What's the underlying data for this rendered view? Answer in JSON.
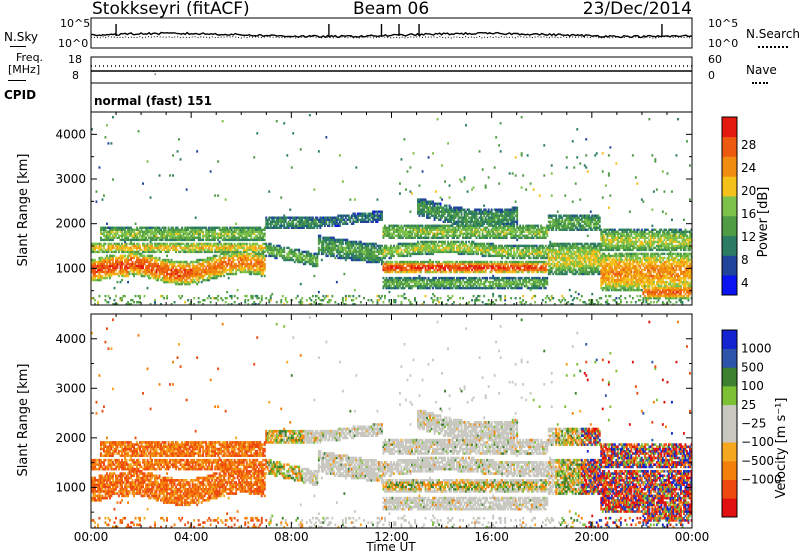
{
  "header": {
    "station": "Stokkseyri (fitACF)",
    "beam": "Beam 06",
    "date": "23/Dec/2014"
  },
  "strip": {
    "nsky_label": "N.Sky",
    "nsearch_label": "N.Search",
    "noise_ticks": [
      "10^5",
      "10^0"
    ],
    "freq_label": "Freq.",
    "freq_unit": "[MHz]",
    "freq_ticks": [
      "18",
      "8"
    ],
    "nave_label": "Nave",
    "nave_ticks": [
      "60",
      "0"
    ],
    "cpid_label": "CPID",
    "cpid_value": "normal (fast) 151"
  },
  "chart_data": [
    {
      "type": "heatmap",
      "title": "",
      "xlabel": "Time UT",
      "ylabel": "Slant Range [km]",
      "x_ticks": [
        "00:00",
        "04:00",
        "08:00",
        "12:00",
        "16:00",
        "20:00",
        "00:00"
      ],
      "x_range": [
        "00:00",
        "24:00"
      ],
      "y_ticks": [
        "1000",
        "2000",
        "3000",
        "4000"
      ],
      "ylim": [
        180,
        4500
      ],
      "colorbar_label": "Power [dB]",
      "colorbar_ticks": [
        "28",
        "24",
        "20",
        "16",
        "12",
        "8",
        "4"
      ],
      "colorbar_range": [
        0,
        30
      ]
    },
    {
      "type": "heatmap",
      "title": "",
      "xlabel": "Time UT",
      "ylabel": "Slant Range [km]",
      "x_ticks": [
        "00:00",
        "04:00",
        "08:00",
        "12:00",
        "16:00",
        "20:00",
        "00:00"
      ],
      "x_range": [
        "00:00",
        "24:00"
      ],
      "y_ticks": [
        "1000",
        "2000",
        "3000",
        "4000"
      ],
      "ylim": [
        180,
        4500
      ],
      "colorbar_label": "Velocity [m s⁻¹]",
      "colorbar_ticks": [
        "1000",
        "500",
        "100",
        "25",
        "−25",
        "−100",
        "−500",
        "−1000"
      ]
    }
  ],
  "colors": {
    "power": [
      "#0a14f0",
      "#20449a",
      "#2c7c63",
      "#4f9c45",
      "#7cc24a",
      "#f4c01a",
      "#f08c10",
      "#ec5a10",
      "#e41a10"
    ],
    "velocity": [
      "#e01010",
      "#ee4a10",
      "#f4800c",
      "#f4a820",
      "#c8c8c0",
      "#c8c8c0",
      "#7cc034",
      "#3c8030",
      "#2c54a8",
      "#1424d0"
    ]
  }
}
